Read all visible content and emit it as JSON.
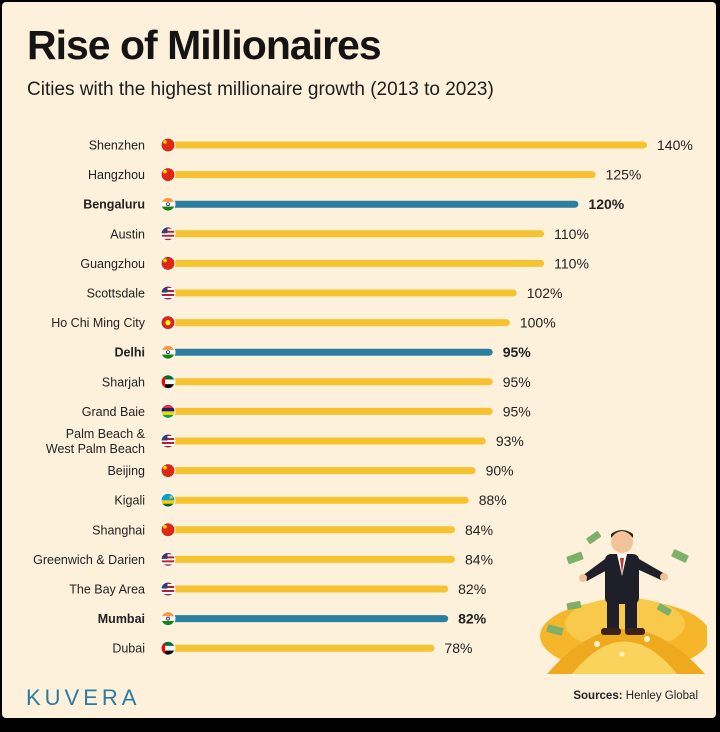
{
  "header": {
    "title": "Rise of Millionaires",
    "subtitle": "Cities with the highest millionaire growth (2013 to 2023)"
  },
  "chart_data": {
    "type": "bar",
    "orientation": "horizontal",
    "categories": [
      "Shenzhen",
      "Hangzhou",
      "Bengaluru",
      "Austin",
      "Guangzhou",
      "Scottsdale",
      "Ho Chi Ming City",
      "Delhi",
      "Sharjah",
      "Grand Baie",
      "Palm Beach & West Palm Beach",
      "Beijing",
      "Kigali",
      "Shanghai",
      "Greenwich & Darien",
      "The Bay Area",
      "Mumbai",
      "Dubai"
    ],
    "values": [
      140,
      125,
      120,
      110,
      110,
      102,
      100,
      95,
      95,
      95,
      93,
      90,
      88,
      84,
      84,
      82,
      82,
      78
    ],
    "value_labels": [
      "140%",
      "125%",
      "120%",
      "110%",
      "110%",
      "102%",
      "100%",
      "95%",
      "95%",
      "95%",
      "93%",
      "90%",
      "88%",
      "84%",
      "84%",
      "82%",
      "82%",
      "78%"
    ],
    "flags": [
      "china-flag-icon",
      "china-flag-icon",
      "india-flag-icon",
      "usa-flag-icon",
      "china-flag-icon",
      "usa-flag-icon",
      "vietnam-flag-icon",
      "india-flag-icon",
      "uae-flag-icon",
      "mauritius-flag-icon",
      "usa-flag-icon",
      "china-flag-icon",
      "rwanda-flag-icon",
      "china-flag-icon",
      "usa-flag-icon",
      "usa-flag-icon",
      "india-flag-icon",
      "uae-flag-icon"
    ],
    "highlighted": [
      "Bengaluru",
      "Delhi",
      "Mumbai"
    ],
    "colors": {
      "default": "#f6c22f",
      "highlight": "#2b7fa0"
    },
    "grid": false,
    "legend": "none"
  },
  "footer": {
    "brand": "KUVERA",
    "source_label": "Sources:",
    "source_value": "Henley Global"
  }
}
